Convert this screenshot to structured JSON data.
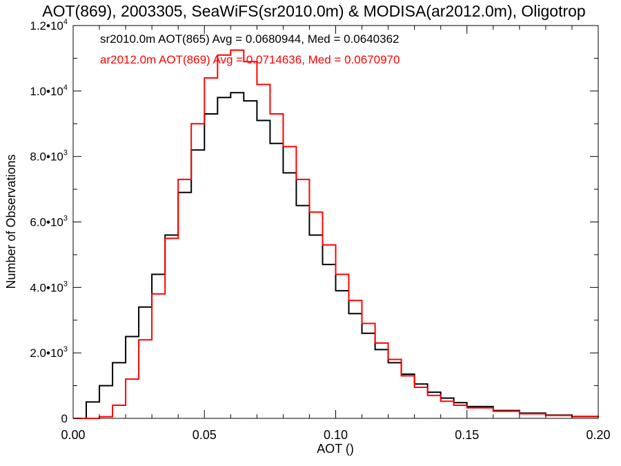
{
  "chart_data": {
    "type": "line",
    "title": "AOT(869), 2003305, SeaWiFS(sr2010.0m) & MODISA(ar2012.0m), Oligotrop",
    "xlabel": "AOT ()",
    "ylabel": "Number of Observations",
    "xlim": [
      0.0,
      0.2
    ],
    "ylim": [
      0,
      12000
    ],
    "x_ticks": [
      0.0,
      0.05,
      0.1,
      0.15,
      0.2
    ],
    "x_tick_labels": [
      "0.00",
      "0.05",
      "0.10",
      "0.15",
      "0.20"
    ],
    "y_ticks": [
      0,
      2000,
      4000,
      6000,
      8000,
      10000,
      12000
    ],
    "y_tick_labels": [
      {
        "base": "0",
        "exp": ""
      },
      {
        "base": "2.0•10",
        "exp": "3"
      },
      {
        "base": "4.0•10",
        "exp": "3"
      },
      {
        "base": "6.0•10",
        "exp": "3"
      },
      {
        "base": "8.0•10",
        "exp": "3"
      },
      {
        "base": "1.0•10",
        "exp": "4"
      },
      {
        "base": "1.2•10",
        "exp": "4"
      }
    ],
    "grid": false,
    "step_style": "histogram",
    "annotations": [
      {
        "text": "sr2010.0m AOT(865) Avg = 0.0680944, Med = 0.0640362",
        "color": "#000000"
      },
      {
        "text": "ar2012.0m AOT(869) Avg = 0.0714636, Med = 0.0670970",
        "color": "#ff0000"
      }
    ],
    "series": [
      {
        "color": "#000000",
        "x": [
          0.0,
          0.005,
          0.01,
          0.015,
          0.02,
          0.025,
          0.03,
          0.035,
          0.04,
          0.045,
          0.05,
          0.055,
          0.06,
          0.065,
          0.07,
          0.075,
          0.08,
          0.085,
          0.09,
          0.095,
          0.1,
          0.105,
          0.11,
          0.115,
          0.12,
          0.125,
          0.13,
          0.135,
          0.14,
          0.145,
          0.15,
          0.16,
          0.17,
          0.18,
          0.19,
          0.2
        ],
        "values": [
          0,
          500,
          1000,
          1700,
          2500,
          3400,
          4400,
          5600,
          6900,
          8200,
          9300,
          9800,
          9950,
          9700,
          9100,
          8400,
          7500,
          6500,
          5600,
          4700,
          3900,
          3200,
          2600,
          2100,
          1700,
          1350,
          1050,
          800,
          620,
          480,
          360,
          240,
          160,
          100,
          60,
          40
        ]
      },
      {
        "color": "#ff0000",
        "x": [
          0.0,
          0.005,
          0.01,
          0.015,
          0.02,
          0.025,
          0.03,
          0.035,
          0.04,
          0.045,
          0.05,
          0.055,
          0.06,
          0.065,
          0.07,
          0.075,
          0.08,
          0.085,
          0.09,
          0.095,
          0.1,
          0.105,
          0.11,
          0.115,
          0.12,
          0.125,
          0.13,
          0.135,
          0.14,
          0.145,
          0.15,
          0.16,
          0.17,
          0.18,
          0.19,
          0.2
        ],
        "values": [
          0,
          0,
          50,
          400,
          1200,
          2400,
          3800,
          5500,
          7300,
          9000,
          10400,
          11100,
          11250,
          10900,
          10200,
          9300,
          8300,
          7300,
          6300,
          5300,
          4400,
          3600,
          2900,
          2300,
          1800,
          1300,
          950,
          700,
          520,
          400,
          320,
          220,
          140,
          90,
          50,
          30
        ]
      }
    ]
  }
}
